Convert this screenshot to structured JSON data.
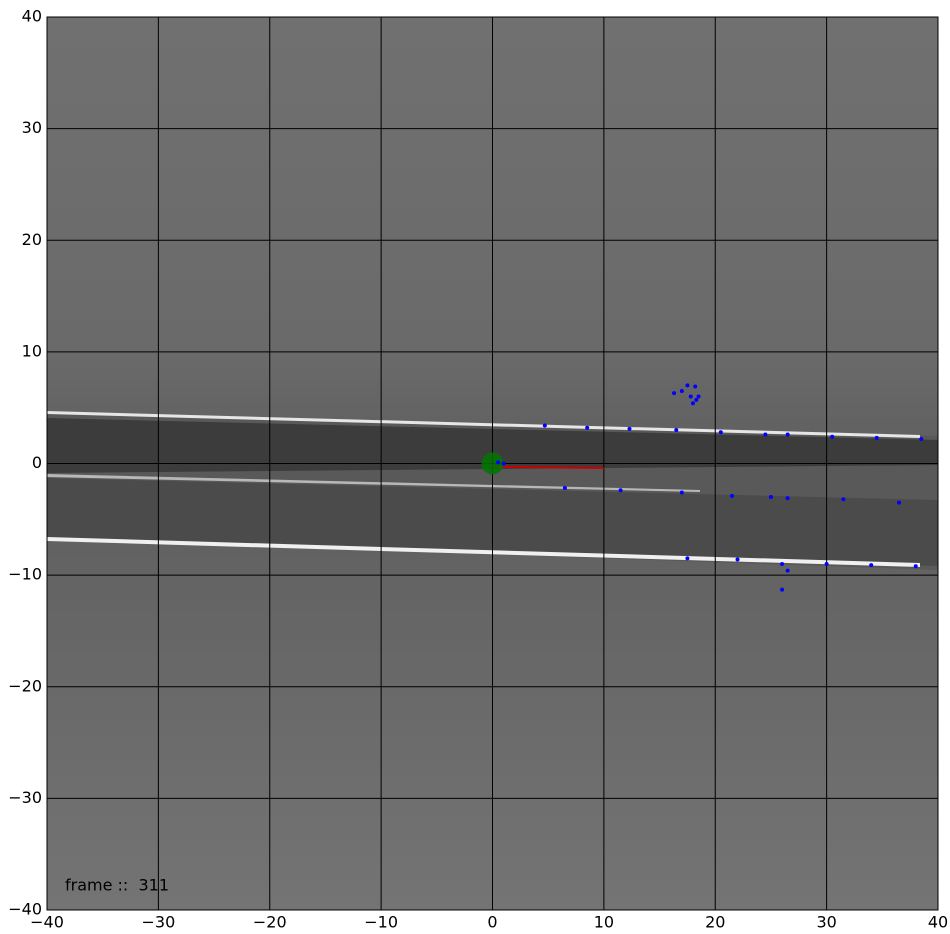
{
  "chart_data": {
    "type": "scatter",
    "annotation": "frame ::  311",
    "xlim": [
      -40,
      40
    ],
    "ylim": [
      -40,
      40
    ],
    "xticks": [
      {
        "value": -40,
        "label": "−40"
      },
      {
        "value": -30,
        "label": "−30"
      },
      {
        "value": -20,
        "label": "−20"
      },
      {
        "value": -10,
        "label": "−10"
      },
      0,
      10,
      20,
      30,
      40
    ],
    "yticks": [
      {
        "value": -40,
        "label": "−40"
      },
      {
        "value": -30,
        "label": "−30"
      },
      {
        "value": -20,
        "label": "−20"
      },
      {
        "value": -10,
        "label": "−10"
      },
      0,
      10,
      20,
      30,
      40
    ],
    "grid": true,
    "points": {
      "color": "#0000ff",
      "x": [
        4.7,
        8.5,
        12.3,
        16.5,
        16.3,
        17,
        17.5,
        18.2,
        17.8,
        18.3,
        18.5,
        18,
        20.5,
        24.5,
        26.5,
        30.5,
        34.5,
        38.5,
        6.5,
        11.5,
        17,
        21.5,
        25,
        26.5,
        31.5,
        36.5,
        17.5,
        22,
        26,
        26.5,
        26,
        30,
        34,
        38,
        1,
        0.5
      ],
      "y": [
        3.4,
        3.2,
        3.1,
        3.0,
        6.3,
        6.5,
        7,
        6.9,
        6,
        5.7,
        6,
        5.4,
        2.8,
        2.6,
        2.6,
        2.4,
        2.3,
        2.2,
        -2.2,
        -2.4,
        -2.6,
        -2.9,
        -3,
        -3.1,
        -3.2,
        -3.5,
        -8.5,
        -8.6,
        -9,
        -9.6,
        -11.3,
        -9,
        -9.1,
        -9.2,
        0,
        0.1
      ]
    },
    "ego": {
      "x": 0,
      "y": 0,
      "color": "#007700"
    },
    "heading": {
      "x": [
        0,
        10
      ],
      "y": [
        -0.3,
        -0.4
      ],
      "color": "#cc0000"
    }
  }
}
